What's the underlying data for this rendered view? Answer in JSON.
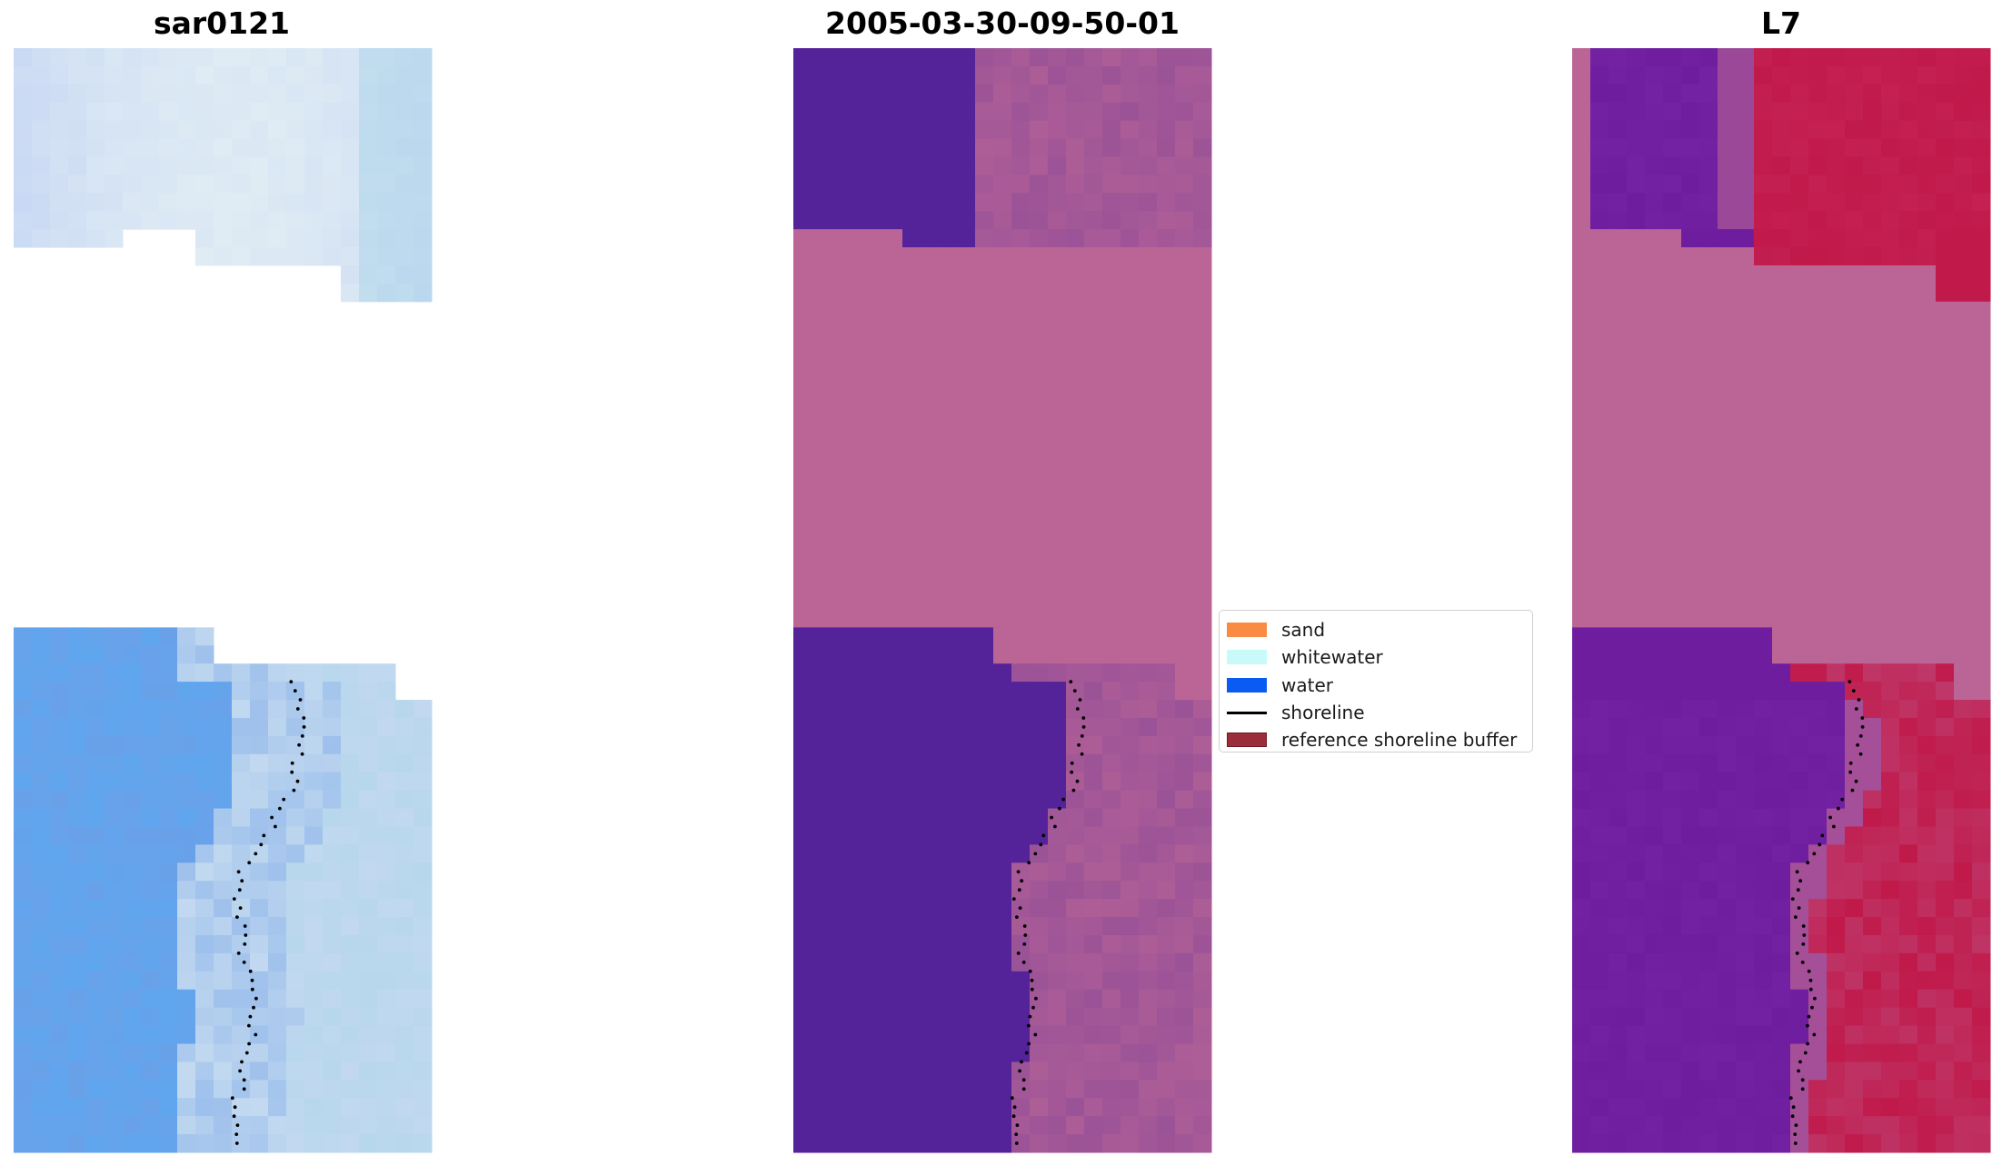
{
  "chart_data": [
    {
      "type": "heatmap",
      "title": "sar0121",
      "colormap": "rgb-composite",
      "colors": {
        "high": "#c9d8f4",
        "low": "#6e9fe6",
        "bright": "#e6f2f4",
        "blue": "#5fa6ef"
      }
    },
    {
      "type": "heatmap",
      "title": "2005-03-30-09-50-01",
      "colormap": "classified",
      "colors": {
        "water_class": "#542299",
        "nodata": "#bb6596",
        "land": "#9b5397"
      }
    },
    {
      "type": "heatmap",
      "title": "L7",
      "colormap": "classified",
      "colors": {
        "water_class": "#6e1d9e",
        "nodata": "#bb6596",
        "sand_class": "#c0194a"
      }
    }
  ],
  "legend": {
    "position": "center-right of middle panel",
    "items": [
      {
        "label": "sand",
        "kind": "patch",
        "color": "#f98b42"
      },
      {
        "label": "whitewater",
        "kind": "patch",
        "color": "#c8fafa"
      },
      {
        "label": "water",
        "kind": "patch",
        "color": "#0a5bf4"
      },
      {
        "label": "shoreline",
        "kind": "line",
        "color": "#000000"
      },
      {
        "label": "reference shoreline buffer",
        "kind": "patch",
        "color": "#9b2d3a"
      }
    ]
  }
}
